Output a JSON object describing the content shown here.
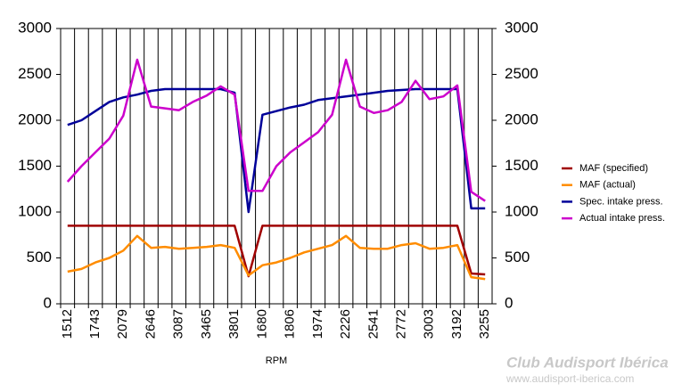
{
  "chart_data": {
    "type": "line",
    "x_label": "RPM",
    "categories": [
      "1512",
      null,
      "1743",
      null,
      "2079",
      null,
      "2646",
      null,
      "3087",
      null,
      "3465",
      null,
      "3801",
      null,
      "1680",
      null,
      "1806",
      null,
      "1974",
      null,
      "2226",
      null,
      "2541",
      null,
      "2772",
      null,
      "3003",
      null,
      "3192",
      null,
      "3255"
    ],
    "series": [
      {
        "name": "MAF (specified)",
        "color": "#a00000",
        "values": [
          850,
          850,
          850,
          850,
          850,
          850,
          850,
          850,
          850,
          850,
          850,
          850,
          850,
          300,
          850,
          850,
          850,
          850,
          850,
          850,
          850,
          850,
          850,
          850,
          850,
          850,
          850,
          850,
          850,
          330,
          320
        ]
      },
      {
        "name": "MAF (actual)",
        "color": "#ff8c00",
        "values": [
          350,
          380,
          450,
          500,
          580,
          740,
          610,
          620,
          600,
          610,
          620,
          640,
          610,
          310,
          420,
          450,
          500,
          560,
          600,
          640,
          740,
          610,
          600,
          600,
          640,
          660,
          600,
          610,
          640,
          290,
          270
        ]
      },
      {
        "name": "Spec. intake press.",
        "color": "#000099",
        "values": [
          1950,
          2000,
          2100,
          2200,
          2250,
          2280,
          2320,
          2340,
          2340,
          2340,
          2340,
          2340,
          2300,
          1000,
          2060,
          2100,
          2140,
          2170,
          2220,
          2240,
          2260,
          2280,
          2300,
          2320,
          2330,
          2340,
          2340,
          2340,
          2340,
          1040,
          1040
        ]
      },
      {
        "name": "Actual intake press.",
        "color": "#cc00cc",
        "values": [
          1330,
          1500,
          1650,
          1800,
          2050,
          2660,
          2150,
          2130,
          2110,
          2200,
          2270,
          2370,
          2280,
          1230,
          1230,
          1500,
          1650,
          1760,
          1870,
          2060,
          2660,
          2150,
          2080,
          2110,
          2200,
          2430,
          2230,
          2260,
          2380,
          1220,
          1120
        ]
      }
    ],
    "ylim": [
      0,
      3000
    ],
    "yticks": [
      0,
      500,
      1000,
      1500,
      2000,
      2500,
      3000
    ],
    "y2lim": [
      0,
      3000
    ],
    "y2ticks": [
      0,
      500,
      1000,
      1500,
      2000,
      2500,
      3000
    ],
    "legend": "right"
  },
  "watermark": {
    "title": "Club Audisport Ibérica",
    "url": "www.audisport-iberica.com"
  }
}
